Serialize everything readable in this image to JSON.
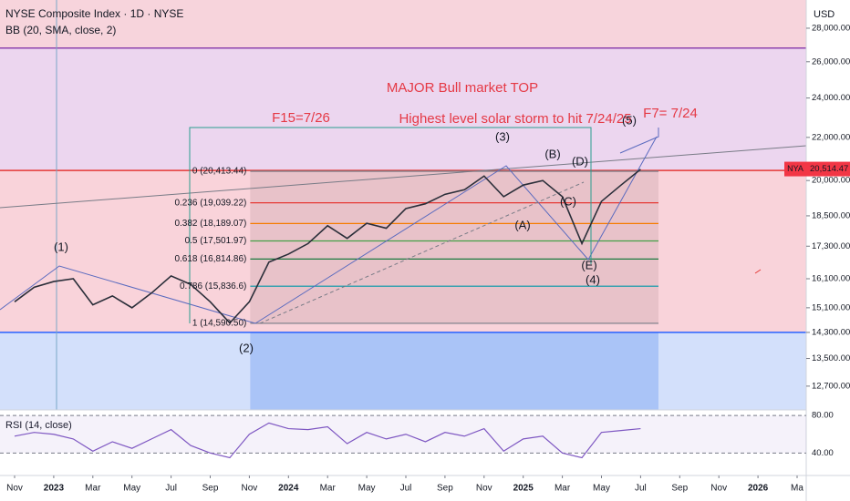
{
  "header": {
    "title": "NYSE Composite Index · 1D · NYSE",
    "indicator": "BB (20, SMA, close, 2)",
    "currency": "USD",
    "symbol": "NYA"
  },
  "chart_data": [
    {
      "type": "line",
      "name": "NYA",
      "categories": [
        "Nov",
        null,
        "2023",
        null,
        "Mar",
        null,
        "May",
        null,
        "Jul",
        null,
        "Sep",
        null,
        "Nov",
        null,
        "2024",
        null,
        "Mar",
        null,
        "May",
        null,
        "Jul",
        null,
        "Sep",
        null,
        "Nov",
        null,
        "2025",
        null,
        "Mar",
        null,
        "May",
        null,
        "Jul",
        null,
        "Sep",
        null,
        "Nov",
        null,
        "2026",
        null,
        "Ma"
      ],
      "values": [
        15300,
        15800,
        16000,
        16100,
        15200,
        15500,
        15100,
        15600,
        16200,
        15900,
        15300,
        14600,
        15300,
        16700,
        17000,
        17400,
        18100,
        17600,
        18200,
        18000,
        18800,
        19000,
        19400,
        19600,
        20200,
        19300,
        19800,
        20000,
        19300,
        17400,
        19100,
        19800,
        20500,
        null,
        null,
        null,
        null,
        null,
        null,
        null,
        null
      ],
      "color": "#2a2e39",
      "log_scale": true,
      "ylim": [
        12050,
        29800
      ],
      "yticks": [
        {
          "value": 12700,
          "label": "12,700.00"
        },
        {
          "value": 13500,
          "label": "13,500.00"
        },
        {
          "value": 14300,
          "label": "14,300.00"
        },
        {
          "value": 15100,
          "label": "15,100.00"
        },
        {
          "value": 16100,
          "label": "16,100.00"
        },
        {
          "value": 17300,
          "label": "17,300.00"
        },
        {
          "value": 18500,
          "label": "18,500.00"
        },
        {
          "value": 20000,
          "label": "20,000.00"
        },
        {
          "value": 22000,
          "label": "22,000.00"
        },
        {
          "value": 24000,
          "label": "24,000.00"
        },
        {
          "value": 26000,
          "label": "26,000.00"
        },
        {
          "value": 28000,
          "label": "28,000.00"
        }
      ],
      "last_price": {
        "value": 20514.47,
        "label": "20,514.47"
      },
      "levels": [
        {
          "value": 26800,
          "color": "#8e44ad"
        },
        {
          "value": 20450,
          "color": "#e53935"
        },
        {
          "value": 14300,
          "color": "#2962ff"
        }
      ],
      "fib": [
        {
          "value": 20413.44,
          "label": "0 (20,413.44)",
          "color": "#787b86"
        },
        {
          "value": 19039.22,
          "label": "0.236 (19,039.22)",
          "color": "#e53935"
        },
        {
          "value": 18189.07,
          "label": "0.382 (18,189.07)",
          "color": "#f57c00"
        },
        {
          "value": 17501.97,
          "label": "0.5 (17,501.97)",
          "color": "#43a047"
        },
        {
          "value": 16814.86,
          "label": "0.618 (16,814.86)",
          "color": "#1b7a3e"
        },
        {
          "value": 15836.6,
          "label": "0.786 (15,836.6)",
          "color": "#0097a7"
        },
        {
          "value": 14590.5,
          "label": "1 (14,590.50)",
          "color": "#787b86"
        }
      ],
      "annotations": [
        "MAJOR Bull market TOP",
        "Highest level solar storm to hit 7/24/25",
        "F15=7/26",
        "F7= 7/24"
      ],
      "waves": [
        "(1)",
        "(2)",
        "(3)",
        "(4)",
        "(5)",
        "(A)",
        "(B)",
        "(C)",
        "(D)",
        "(E)"
      ]
    },
    {
      "type": "line",
      "name": "RSI (14, close)",
      "values": [
        58,
        62,
        60,
        55,
        42,
        52,
        45,
        55,
        65,
        48,
        40,
        35,
        60,
        72,
        66,
        65,
        68,
        50,
        62,
        55,
        60,
        52,
        62,
        58,
        66,
        42,
        55,
        58,
        40,
        35,
        62,
        64,
        66,
        null,
        null,
        null,
        null,
        null,
        null,
        null,
        null
      ],
      "color": "#7e57c2",
      "ylim": [
        16,
        86
      ],
      "yticks": [
        {
          "value": 80,
          "label": "80.00"
        },
        {
          "value": 40,
          "label": "40.00"
        }
      ]
    }
  ]
}
